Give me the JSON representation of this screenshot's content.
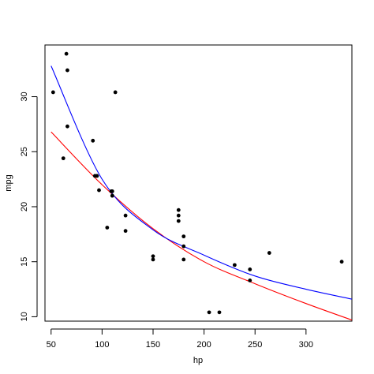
{
  "chart_data": {
    "type": "scatter",
    "title": "",
    "xlabel": "hp",
    "ylabel": "mpg",
    "xlim": [
      44,
      345
    ],
    "ylim": [
      9.6,
      34.7
    ],
    "grid": false,
    "x_ticks": [
      50,
      100,
      150,
      200,
      250,
      300
    ],
    "y_ticks": [
      10,
      15,
      20,
      25,
      30
    ],
    "x_tick_labels": [
      "50",
      "100",
      "150",
      "200",
      "250",
      "300"
    ],
    "y_tick_labels": [
      "10",
      "15",
      "20",
      "25",
      "30"
    ],
    "points": [
      {
        "x": 52,
        "y": 30.4
      },
      {
        "x": 62,
        "y": 24.4
      },
      {
        "x": 65,
        "y": 33.9
      },
      {
        "x": 66,
        "y": 32.4
      },
      {
        "x": 66,
        "y": 27.3
      },
      {
        "x": 91,
        "y": 26.0
      },
      {
        "x": 93,
        "y": 22.8
      },
      {
        "x": 95,
        "y": 22.8
      },
      {
        "x": 97,
        "y": 21.5
      },
      {
        "x": 105,
        "y": 18.1
      },
      {
        "x": 109,
        "y": 21.4
      },
      {
        "x": 110,
        "y": 21.0
      },
      {
        "x": 110,
        "y": 21.0
      },
      {
        "x": 110,
        "y": 21.4
      },
      {
        "x": 113,
        "y": 30.4
      },
      {
        "x": 123,
        "y": 17.8
      },
      {
        "x": 123,
        "y": 19.2
      },
      {
        "x": 150,
        "y": 15.2
      },
      {
        "x": 150,
        "y": 15.5
      },
      {
        "x": 175,
        "y": 18.7
      },
      {
        "x": 175,
        "y": 19.2
      },
      {
        "x": 175,
        "y": 19.7
      },
      {
        "x": 180,
        "y": 16.4
      },
      {
        "x": 180,
        "y": 17.3
      },
      {
        "x": 180,
        "y": 15.2
      },
      {
        "x": 205,
        "y": 10.4
      },
      {
        "x": 215,
        "y": 10.4
      },
      {
        "x": 230,
        "y": 14.7
      },
      {
        "x": 245,
        "y": 13.3
      },
      {
        "x": 245,
        "y": 14.3
      },
      {
        "x": 264,
        "y": 15.8
      },
      {
        "x": 335,
        "y": 15.0
      }
    ],
    "curves": [
      {
        "color": "#ff0000",
        "points": [
          {
            "x": 50,
            "y": 26.8
          },
          {
            "x": 100,
            "y": 22.0
          },
          {
            "x": 150,
            "y": 18.0
          },
          {
            "x": 200,
            "y": 15.0
          },
          {
            "x": 250,
            "y": 13.0
          },
          {
            "x": 300,
            "y": 11.2
          },
          {
            "x": 345,
            "y": 9.7
          }
        ]
      },
      {
        "color": "#0000ff",
        "points": [
          {
            "x": 50,
            "y": 32.8
          },
          {
            "x": 100,
            "y": 22.5
          },
          {
            "x": 150,
            "y": 17.9
          },
          {
            "x": 200,
            "y": 15.6
          },
          {
            "x": 250,
            "y": 13.7
          },
          {
            "x": 300,
            "y": 12.5
          },
          {
            "x": 345,
            "y": 11.6
          }
        ]
      }
    ]
  }
}
